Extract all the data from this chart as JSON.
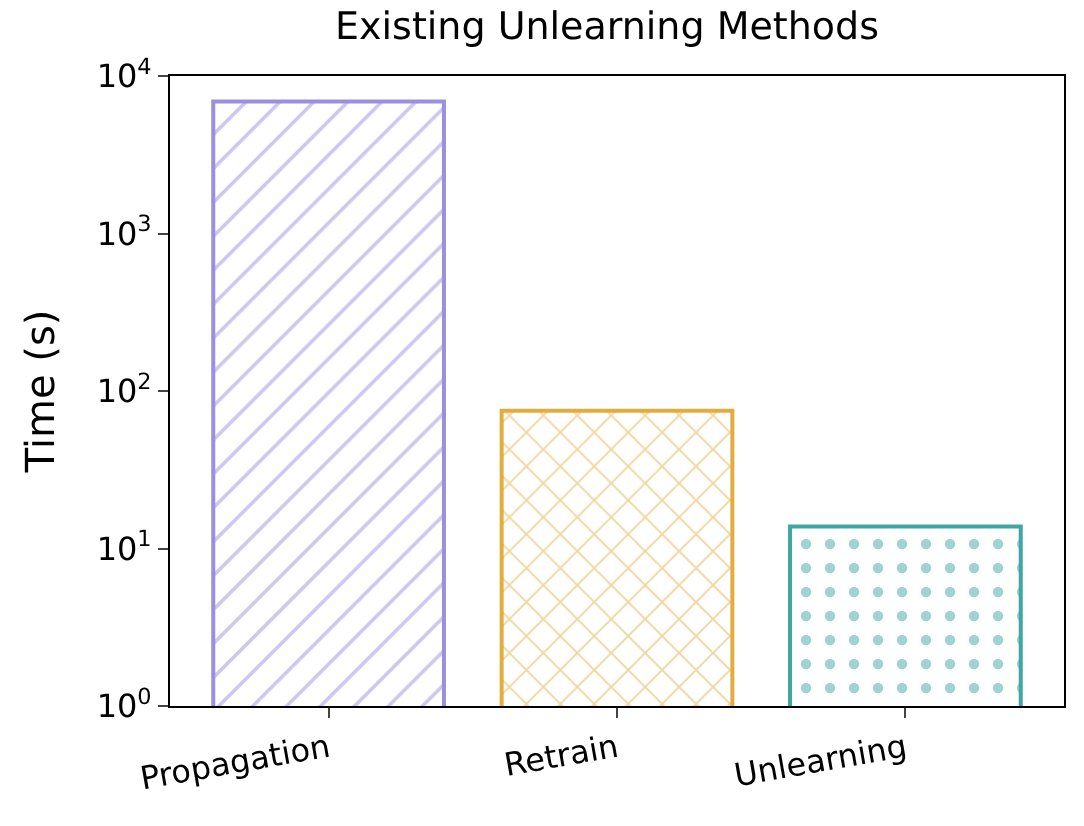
{
  "chart_data": {
    "type": "bar",
    "title": "Existing Unlearning Methods",
    "ylabel": "Time (s)",
    "categories": [
      "Propagation",
      "Retrain",
      "Unlearning"
    ],
    "values": [
      6900,
      75,
      13.8
    ],
    "colors": [
      "#9b8fe0",
      "#e2ad3c",
      "#3da8a2"
    ],
    "log": "y",
    "ylim": [
      1,
      10000
    ],
    "yticks": [
      {
        "value": 1,
        "label": "10$^{0}$"
      },
      {
        "value": 10,
        "label": "10$^{1}$"
      },
      {
        "value": 100,
        "label": "10$^{2}$"
      },
      {
        "value": 1000,
        "label": "10$^{3}$"
      },
      {
        "value": 10000,
        "label": "10$^{4}$"
      }
    ],
    "legend": false
  }
}
